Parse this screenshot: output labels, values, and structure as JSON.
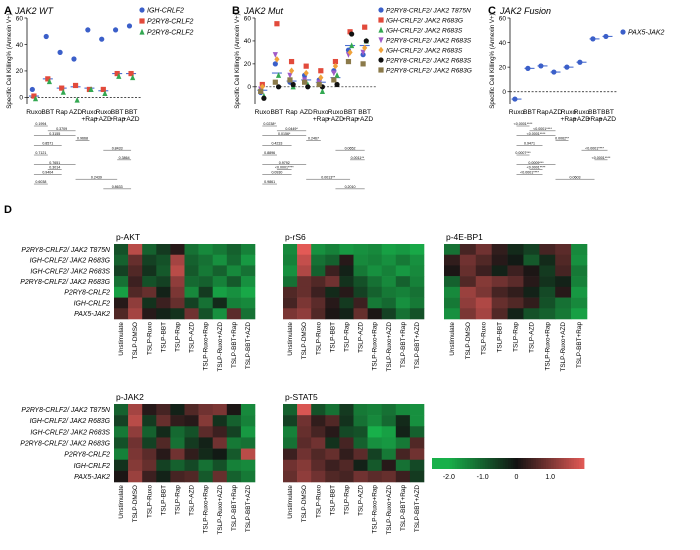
{
  "heat_colors": {
    "low": "#18b04a",
    "mid": "#121212",
    "high": "#e35a56"
  },
  "significance_lines": [
    {
      "panel": "A",
      "values": [
        "0.1994",
        "0.3709",
        "0.3155",
        "0.9668",
        "0.8571",
        "0.8433",
        "0.7121",
        "0.3864",
        "0.7651",
        "0.3014",
        "0.9404",
        "0.2439",
        "0.6038",
        "0.8633"
      ]
    },
    {
      "panel": "B",
      "values": [
        "0.0238*",
        "0.0449*",
        "0.0156*",
        "0.2467",
        "0.4233",
        "0.0652",
        "0.8896",
        "0.0011**",
        "0.9792",
        "<0.0001****",
        "0.0930",
        "0.0013**",
        "0.9861",
        "0.2010"
      ]
    },
    {
      "panel": "C",
      "values": [
        "<0.0001****",
        "<0.0001****",
        "<0.0001****",
        "0.0062**",
        "0.9471",
        "<0.0001****",
        "0.0007***",
        "<0.0001****",
        "0.0009***",
        "<0.0001****",
        "<0.0001****",
        "0.0603"
      ]
    }
  ],
  "chart_data": [
    {
      "panel_label": "A",
      "title": "JAK2 WT",
      "type": "scatter",
      "ylabel": "Specific Cell Killing% (Annexin V+)",
      "categories": [
        "Ruxo",
        "BBT",
        "Rap",
        "AZD",
        "Ruxo +Rap",
        "Ruxo +AZD",
        "BBT +Rap",
        "BBT +AZD"
      ],
      "ylim": [
        -5,
        60
      ],
      "series": [
        {
          "name": "IGH-CRLF2",
          "color": "#3b5fc9",
          "marker": "circle",
          "values": [
            6,
            46,
            34,
            29,
            51,
            44,
            51,
            54
          ]
        },
        {
          "name": "P2RY8-CRLF2",
          "color": "#e24a3b",
          "marker": "square",
          "values": [
            1,
            14,
            7,
            9,
            6,
            6,
            18,
            18
          ]
        },
        {
          "name": "P2RY8-CRLF2",
          "color": "#33a851",
          "marker": "triangle",
          "values": [
            -1,
            12,
            4,
            -2,
            6,
            3,
            16,
            15
          ]
        }
      ],
      "means": [
        1,
        14,
        7,
        8,
        7,
        5,
        18,
        18
      ]
    },
    {
      "panel_label": "B",
      "title": "JAK2 Mut",
      "type": "scatter",
      "ylabel": "Specific Cell Killing% (Annexin V+)",
      "categories": [
        "Ruxo",
        "BBT",
        "Rap",
        "AZD",
        "Ruxo +Rap",
        "Ruxo +AZD",
        "BBT +Rap",
        "BBT +AZD"
      ],
      "ylim": [
        -15,
        60
      ],
      "series": [
        {
          "name": "P2RY8-CRLF2/ JAK2 T875N",
          "color": "#3b5fc9",
          "marker": "circle",
          "values": [
            -5,
            20,
            4,
            10,
            6,
            14,
            32,
            28
          ]
        },
        {
          "name": "IGH-CRLF2/ JAK2 R683G",
          "color": "#e24a3b",
          "marker": "square",
          "values": [
            2,
            55,
            22,
            18,
            14,
            22,
            48,
            52
          ]
        },
        {
          "name": "IGH-CRLF2/ JAK2 R683S",
          "color": "#33a851",
          "marker": "triangle",
          "values": [
            -8,
            10,
            0,
            2,
            -4,
            10,
            36,
            40
          ]
        },
        {
          "name": "P2RY8-CRLF2/ JAK2 R683S",
          "color": "#a05ac8",
          "marker": "triangle-down",
          "values": [
            -2,
            28,
            10,
            6,
            4,
            12,
            28,
            30
          ]
        },
        {
          "name": "IGH-CRLF2/ JAK2 R683S",
          "color": "#f0a23a",
          "marker": "diamond",
          "values": [
            0,
            24,
            14,
            12,
            8,
            18,
            30,
            34
          ]
        },
        {
          "name": "P2RY8-CRLF2/ JAK2 R683S",
          "color": "#111111",
          "marker": "circle",
          "values": [
            -10,
            0,
            2,
            0,
            0,
            2,
            46,
            40
          ]
        },
        {
          "name": "P2RY8-CRLF2/ JAK2 R683G",
          "color": "#8b7a4a",
          "marker": "square",
          "values": [
            -4,
            4,
            6,
            4,
            2,
            6,
            22,
            20
          ]
        }
      ],
      "means": [
        -3,
        12,
        5,
        6,
        4,
        8,
        36,
        36
      ]
    },
    {
      "panel_label": "C",
      "title": "JAK2 Fusion",
      "type": "scatter",
      "ylabel": "Specific Cell Killing% (Annexin V+)",
      "categories": [
        "Ruxo",
        "BBT",
        "Rap",
        "AZD",
        "Ruxo +Rap",
        "Ruxo +AZD",
        "BBT +Rap",
        "BBT +AZD"
      ],
      "ylim": [
        -10,
        60
      ],
      "series": [
        {
          "name": "PAX5-JAK2",
          "color": "#3b5fc9",
          "marker": "circle",
          "values": [
            -6,
            19,
            21,
            16,
            20,
            24,
            43,
            45
          ]
        }
      ],
      "means": [
        -6,
        19,
        21,
        16,
        20,
        24,
        43,
        45
      ]
    },
    {
      "panel_label": "D",
      "type": "heatmap",
      "rows": [
        "P2RY8-CRLF2/ JAK2 T875N",
        "IGH-CRLF2/ JAK2 R683G",
        "IGH-CRLF2/ JAK2 R683S",
        "P2RY8-CRLF2/ JAK2 R683G",
        "P2RY8-CRLF2",
        "IGH-CRLF2",
        "PAX5-JAK2"
      ],
      "colorbar": {
        "min": -2.5,
        "max": 2.0,
        "ticks": [
          "-2.0",
          "-1.0",
          "0",
          "1.0"
        ]
      },
      "heatmaps": [
        {
          "title": "p-AKT",
          "columns": [
            "Unstimulate",
            "TSLP-DMSO",
            "TSLP-Ruxo",
            "TSLP-BBT",
            "TSLP-Rap",
            "TSLP-AZD",
            "TSLP-Ruxo+Rap",
            "TSLP-Ruxo+AZD",
            "TSLP-BBT+Rap",
            "TSLP-BBT+AZD"
          ],
          "values": [
            [
              -0.8,
              1.6,
              -1.0,
              -0.5,
              0.2,
              -1.2,
              -1.5,
              -1.3,
              -1.0,
              -1.4
            ],
            [
              -1.0,
              0.8,
              -0.6,
              -0.8,
              1.4,
              -1.0,
              -1.2,
              -1.6,
              -1.1,
              -1.7
            ],
            [
              -0.6,
              0.6,
              -0.4,
              -0.9,
              1.6,
              -0.9,
              -1.3,
              -1.0,
              -1.5,
              -1.2
            ],
            [
              -1.2,
              0.4,
              -0.8,
              -0.6,
              1.2,
              -1.1,
              -1.0,
              -1.4,
              -0.9,
              -1.6
            ],
            [
              -1.8,
              0.6,
              0.8,
              -0.2,
              1.0,
              -1.5,
              -0.5,
              -1.8,
              -1.6,
              -1.9
            ],
            [
              0.2,
              1.2,
              -0.4,
              0.4,
              0.8,
              -0.6,
              -1.2,
              -0.3,
              -1.4,
              -1.5
            ],
            [
              0.6,
              1.4,
              0.2,
              -0.2,
              -0.4,
              0.9,
              -0.8,
              -1.6,
              0.7,
              -1.2
            ]
          ]
        },
        {
          "title": "p-rS6",
          "columns": [
            "Unstimulate",
            "TSLP-DMSO",
            "TSLP-Ruxo",
            "TSLP-BBT",
            "TSLP-Rap",
            "TSLP-AZD",
            "TSLP-Ruxo+Rap",
            "TSLP-Ruxo+AZD",
            "TSLP-BBT+Rap",
            "TSLP-BBT+AZD"
          ],
          "values": [
            [
              -1.5,
              2.0,
              -1.6,
              -1.4,
              -1.7,
              -1.6,
              -1.5,
              -1.8,
              -1.7,
              -1.9
            ],
            [
              -1.4,
              1.7,
              -1.2,
              -1.0,
              0.2,
              -1.5,
              -1.4,
              -1.6,
              -1.3,
              -1.6
            ],
            [
              -1.6,
              1.5,
              -1.0,
              0.4,
              -0.2,
              -1.3,
              -1.6,
              -1.4,
              -1.7,
              -1.5
            ],
            [
              -1.2,
              0.8,
              0.6,
              0.9,
              -0.4,
              -0.8,
              -1.2,
              -1.5,
              -1.0,
              -1.4
            ],
            [
              0.6,
              0.8,
              0.4,
              -0.3,
              0.2,
              -0.6,
              -1.0,
              -1.3,
              -1.4,
              -1.2
            ],
            [
              0.5,
              1.0,
              0.7,
              0.2,
              -0.5,
              0.4,
              -1.3,
              -1.1,
              -1.6,
              -1.3
            ],
            [
              1.0,
              1.2,
              0.6,
              0.1,
              -0.2,
              0.8,
              0.1,
              -0.6,
              -1.2,
              -0.8
            ]
          ]
        },
        {
          "title": "p-4E-BP1",
          "columns": [
            "Unstimulate",
            "TSLP-DMSO",
            "TSLP-Ruxo",
            "TSLP-BBT",
            "TSLP-Rap",
            "TSLP-AZD",
            "TSLP-Ruxo+Rap",
            "TSLP-Ruxo+AZD",
            "TSLP-BBT+Rap"
          ],
          "values": [
            [
              -1.2,
              0.5,
              0.9,
              0.3,
              -0.3,
              -0.6,
              0.5,
              0.7,
              -1.5
            ],
            [
              0.3,
              0.9,
              0.6,
              0.2,
              -0.1,
              -0.9,
              -0.3,
              0.6,
              -1.6
            ],
            [
              0.1,
              0.8,
              0.4,
              -0.2,
              0.4,
              0.1,
              -0.5,
              0.5,
              -1.3
            ],
            [
              -1.0,
              0.6,
              1.1,
              0.9,
              0.7,
              0.2,
              -0.4,
              -0.2,
              -1.4
            ],
            [
              -1.5,
              1.3,
              1.0,
              0.5,
              0.3,
              -0.2,
              -0.7,
              0.2,
              -1.7
            ],
            [
              -1.3,
              1.2,
              1.5,
              0.8,
              0.6,
              0.3,
              -0.8,
              -1.2,
              -1.5
            ],
            [
              -1.6,
              1.0,
              1.4,
              0.6,
              -0.2,
              -0.8,
              -1.0,
              -1.3,
              -1.8
            ]
          ]
        },
        {
          "title": "p-JAK2",
          "columns": [
            "Unstimulate",
            "TSLP-DMSO",
            "TSLP-Ruxo",
            "TSLP-BBT",
            "TSLP-Rap",
            "TSLP-AZD",
            "TSLP-Ruxo+Rap",
            "TSLP-Ruxo+AZD",
            "TSLP-BBT+Rap",
            "TSLP-BBT+AZD"
          ],
          "values": [
            [
              -1.0,
              1.4,
              0.2,
              0.5,
              -0.2,
              0.6,
              0.9,
              1.0,
              0.1,
              -1.5
            ],
            [
              -0.6,
              1.6,
              -0.5,
              0.8,
              0.3,
              0.2,
              1.1,
              -0.4,
              -1.0,
              -1.4
            ],
            [
              -1.3,
              1.2,
              -1.0,
              -0.3,
              -1.1,
              -0.8,
              0.7,
              0.4,
              -0.6,
              -1.7
            ],
            [
              -0.8,
              0.9,
              -0.6,
              0.6,
              -1.2,
              -0.5,
              -0.2,
              0.9,
              -1.3,
              -1.2
            ],
            [
              -1.4,
              1.0,
              0.7,
              0.2,
              0.9,
              0.3,
              -0.3,
              -0.1,
              -0.9,
              1.6
            ],
            [
              -0.4,
              1.1,
              0.8,
              -0.6,
              -1.0,
              -0.7,
              -1.2,
              -0.8,
              -1.4,
              -1.5
            ],
            [
              0.1,
              1.3,
              0.4,
              -0.2,
              0.5,
              0.6,
              -0.9,
              0.8,
              -1.0,
              -1.3
            ]
          ]
        },
        {
          "title": "p-STAT5",
          "columns": [
            "Unstimulate",
            "TSLP-DMSO",
            "TSLP-Ruxo",
            "TSLP-BBT",
            "TSLP-Rap",
            "TSLP-AZD",
            "TSLP-Ruxo+Rap",
            "TSLP-Ruxo+AZD",
            "TSLP-BBT+Rap",
            "TSLP-BBT+AZD"
          ],
          "values": [
            [
              -1.0,
              1.9,
              -0.8,
              -1.2,
              -0.5,
              -1.3,
              -1.4,
              -1.2,
              -1.5,
              -1.6
            ],
            [
              -0.6,
              0.9,
              0.3,
              0.6,
              -0.4,
              -1.2,
              -1.5,
              -1.1,
              -0.3,
              -1.6
            ],
            [
              -1.4,
              0.8,
              0.5,
              0.2,
              -0.7,
              -0.8,
              -2.0,
              -1.8,
              -0.2,
              -1.0
            ],
            [
              -1.2,
              0.7,
              0.9,
              -0.4,
              0.5,
              -1.0,
              -1.6,
              -1.7,
              -1.3,
              0.6
            ],
            [
              0.4,
              0.9,
              0.6,
              0.8,
              0.3,
              0.7,
              -0.6,
              -1.3,
              0.5,
              0.9
            ],
            [
              0.9,
              1.1,
              0.7,
              0.4,
              0.6,
              -0.2,
              -0.9,
              0.2,
              -1.2,
              -0.7
            ],
            [
              0.8,
              1.2,
              0.9,
              0.6,
              0.5,
              0.9,
              0.7,
              0.8,
              0.4,
              -0.5
            ]
          ]
        }
      ]
    }
  ]
}
